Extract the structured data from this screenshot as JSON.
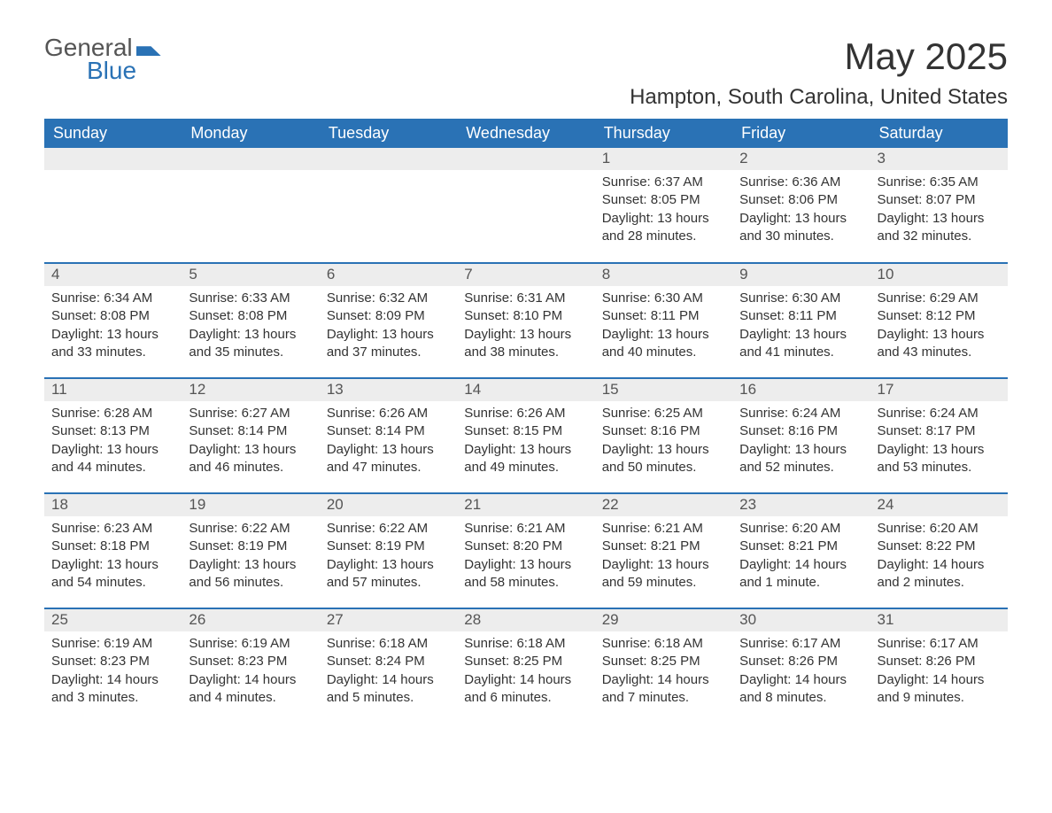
{
  "logo": {
    "general": "General",
    "blue": "Blue"
  },
  "header": {
    "month_title": "May 2025",
    "location": "Hampton, South Carolina, United States"
  },
  "colors": {
    "header_bg": "#2a72b5",
    "header_text": "#ffffff",
    "daynum_bg": "#ededed",
    "daynum_text": "#555555",
    "body_text": "#333333",
    "page_bg": "#ffffff",
    "row_sep": "#2a72b5",
    "logo_blue": "#2a72b5",
    "logo_gray": "#555555"
  },
  "calendar": {
    "weekdays": [
      "Sunday",
      "Monday",
      "Tuesday",
      "Wednesday",
      "Thursday",
      "Friday",
      "Saturday"
    ],
    "labels": {
      "sunrise": "Sunrise:",
      "sunset": "Sunset:",
      "daylight": "Daylight:"
    },
    "weeks": [
      [
        null,
        null,
        null,
        null,
        {
          "num": "1",
          "sunrise": "6:37 AM",
          "sunset": "8:05 PM",
          "daylight": "13 hours and 28 minutes."
        },
        {
          "num": "2",
          "sunrise": "6:36 AM",
          "sunset": "8:06 PM",
          "daylight": "13 hours and 30 minutes."
        },
        {
          "num": "3",
          "sunrise": "6:35 AM",
          "sunset": "8:07 PM",
          "daylight": "13 hours and 32 minutes."
        }
      ],
      [
        {
          "num": "4",
          "sunrise": "6:34 AM",
          "sunset": "8:08 PM",
          "daylight": "13 hours and 33 minutes."
        },
        {
          "num": "5",
          "sunrise": "6:33 AM",
          "sunset": "8:08 PM",
          "daylight": "13 hours and 35 minutes."
        },
        {
          "num": "6",
          "sunrise": "6:32 AM",
          "sunset": "8:09 PM",
          "daylight": "13 hours and 37 minutes."
        },
        {
          "num": "7",
          "sunrise": "6:31 AM",
          "sunset": "8:10 PM",
          "daylight": "13 hours and 38 minutes."
        },
        {
          "num": "8",
          "sunrise": "6:30 AM",
          "sunset": "8:11 PM",
          "daylight": "13 hours and 40 minutes."
        },
        {
          "num": "9",
          "sunrise": "6:30 AM",
          "sunset": "8:11 PM",
          "daylight": "13 hours and 41 minutes."
        },
        {
          "num": "10",
          "sunrise": "6:29 AM",
          "sunset": "8:12 PM",
          "daylight": "13 hours and 43 minutes."
        }
      ],
      [
        {
          "num": "11",
          "sunrise": "6:28 AM",
          "sunset": "8:13 PM",
          "daylight": "13 hours and 44 minutes."
        },
        {
          "num": "12",
          "sunrise": "6:27 AM",
          "sunset": "8:14 PM",
          "daylight": "13 hours and 46 minutes."
        },
        {
          "num": "13",
          "sunrise": "6:26 AM",
          "sunset": "8:14 PM",
          "daylight": "13 hours and 47 minutes."
        },
        {
          "num": "14",
          "sunrise": "6:26 AM",
          "sunset": "8:15 PM",
          "daylight": "13 hours and 49 minutes."
        },
        {
          "num": "15",
          "sunrise": "6:25 AM",
          "sunset": "8:16 PM",
          "daylight": "13 hours and 50 minutes."
        },
        {
          "num": "16",
          "sunrise": "6:24 AM",
          "sunset": "8:16 PM",
          "daylight": "13 hours and 52 minutes."
        },
        {
          "num": "17",
          "sunrise": "6:24 AM",
          "sunset": "8:17 PM",
          "daylight": "13 hours and 53 minutes."
        }
      ],
      [
        {
          "num": "18",
          "sunrise": "6:23 AM",
          "sunset": "8:18 PM",
          "daylight": "13 hours and 54 minutes."
        },
        {
          "num": "19",
          "sunrise": "6:22 AM",
          "sunset": "8:19 PM",
          "daylight": "13 hours and 56 minutes."
        },
        {
          "num": "20",
          "sunrise": "6:22 AM",
          "sunset": "8:19 PM",
          "daylight": "13 hours and 57 minutes."
        },
        {
          "num": "21",
          "sunrise": "6:21 AM",
          "sunset": "8:20 PM",
          "daylight": "13 hours and 58 minutes."
        },
        {
          "num": "22",
          "sunrise": "6:21 AM",
          "sunset": "8:21 PM",
          "daylight": "13 hours and 59 minutes."
        },
        {
          "num": "23",
          "sunrise": "6:20 AM",
          "sunset": "8:21 PM",
          "daylight": "14 hours and 1 minute."
        },
        {
          "num": "24",
          "sunrise": "6:20 AM",
          "sunset": "8:22 PM",
          "daylight": "14 hours and 2 minutes."
        }
      ],
      [
        {
          "num": "25",
          "sunrise": "6:19 AM",
          "sunset": "8:23 PM",
          "daylight": "14 hours and 3 minutes."
        },
        {
          "num": "26",
          "sunrise": "6:19 AM",
          "sunset": "8:23 PM",
          "daylight": "14 hours and 4 minutes."
        },
        {
          "num": "27",
          "sunrise": "6:18 AM",
          "sunset": "8:24 PM",
          "daylight": "14 hours and 5 minutes."
        },
        {
          "num": "28",
          "sunrise": "6:18 AM",
          "sunset": "8:25 PM",
          "daylight": "14 hours and 6 minutes."
        },
        {
          "num": "29",
          "sunrise": "6:18 AM",
          "sunset": "8:25 PM",
          "daylight": "14 hours and 7 minutes."
        },
        {
          "num": "30",
          "sunrise": "6:17 AM",
          "sunset": "8:26 PM",
          "daylight": "14 hours and 8 minutes."
        },
        {
          "num": "31",
          "sunrise": "6:17 AM",
          "sunset": "8:26 PM",
          "daylight": "14 hours and 9 minutes."
        }
      ]
    ]
  }
}
